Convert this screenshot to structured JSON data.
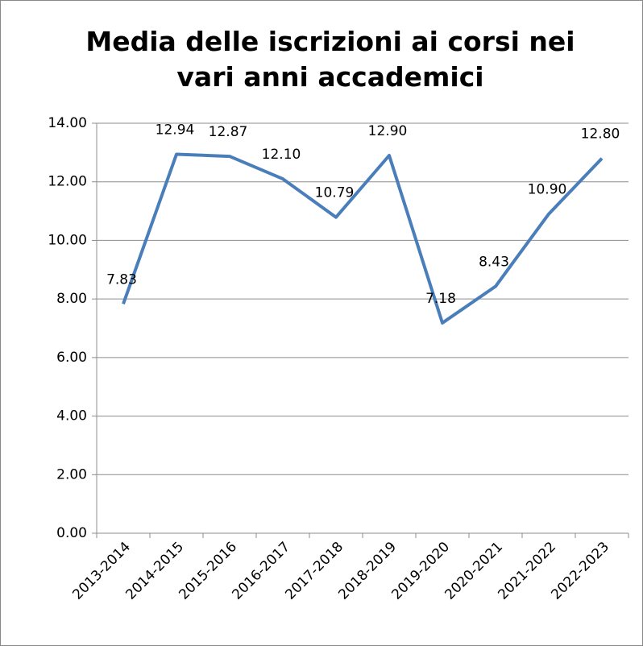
{
  "chart_data": {
    "type": "line",
    "title": "Media delle iscrizioni ai corsi nei vari anni accademici",
    "categories": [
      "2013-2014",
      "2014-2015",
      "2015-2016",
      "2016-2017",
      "2017-2018",
      "2018-2019",
      "2019-2020",
      "2020-2021",
      "2021-2022",
      "2022-2023"
    ],
    "series": [
      {
        "name": "Media",
        "color": "#4a7ebb",
        "values": [
          7.83,
          12.94,
          12.87,
          12.1,
          10.79,
          12.9,
          7.18,
          8.43,
          10.9,
          12.8
        ],
        "value_labels": [
          "7.83",
          "12.94",
          "12.87",
          "12.10",
          "10.79",
          "12.90",
          "7.18",
          "8.43",
          "10.90",
          "12.80"
        ]
      }
    ],
    "ylim": [
      0,
      14
    ],
    "yticks": [
      {
        "value": 0,
        "label": "0.00"
      },
      {
        "value": 2,
        "label": "2.00"
      },
      {
        "value": 4,
        "label": "4.00"
      },
      {
        "value": 6,
        "label": "6.00"
      },
      {
        "value": 8,
        "label": "8.00"
      },
      {
        "value": 10,
        "label": "10.00"
      },
      {
        "value": 12,
        "label": "12.00"
      },
      {
        "value": 14,
        "label": "14.00"
      }
    ],
    "grid": true
  }
}
